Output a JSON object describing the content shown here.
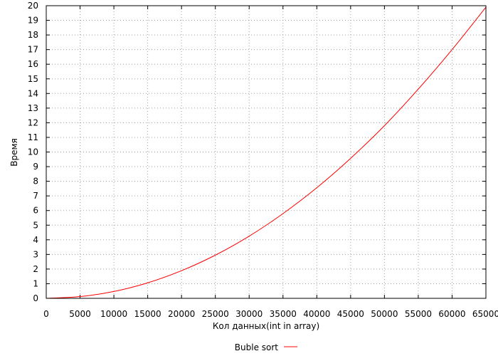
{
  "chart_data": {
    "type": "line",
    "xlabel": "Кол данных(int in array)",
    "ylabel": "Время",
    "xlim": [
      0,
      65000
    ],
    "ylim": [
      0,
      20
    ],
    "x_ticks": [
      "0",
      "5000",
      "10000",
      "15000",
      "20000",
      "25000",
      "30000",
      "35000",
      "40000",
      "45000",
      "50000",
      "55000",
      "60000",
      "65000"
    ],
    "y_ticks": [
      "0",
      "1",
      "2",
      "3",
      "4",
      "5",
      "6",
      "7",
      "8",
      "9",
      "10",
      "11",
      "12",
      "13",
      "14",
      "15",
      "16",
      "17",
      "18",
      "19",
      "20"
    ],
    "grid": true,
    "legend_position": "bottom-center",
    "series": [
      {
        "name": "Buble sort",
        "color": "#ff0000",
        "x": [
          0,
          5000,
          10000,
          15000,
          20000,
          25000,
          30000,
          35000,
          40000,
          45000,
          50000,
          55000,
          60000,
          65000
        ],
        "y": [
          0,
          0.12,
          0.47,
          1.06,
          1.89,
          2.95,
          4.25,
          5.79,
          7.56,
          9.57,
          11.8,
          14.3,
          17.0,
          19.9
        ]
      }
    ]
  }
}
